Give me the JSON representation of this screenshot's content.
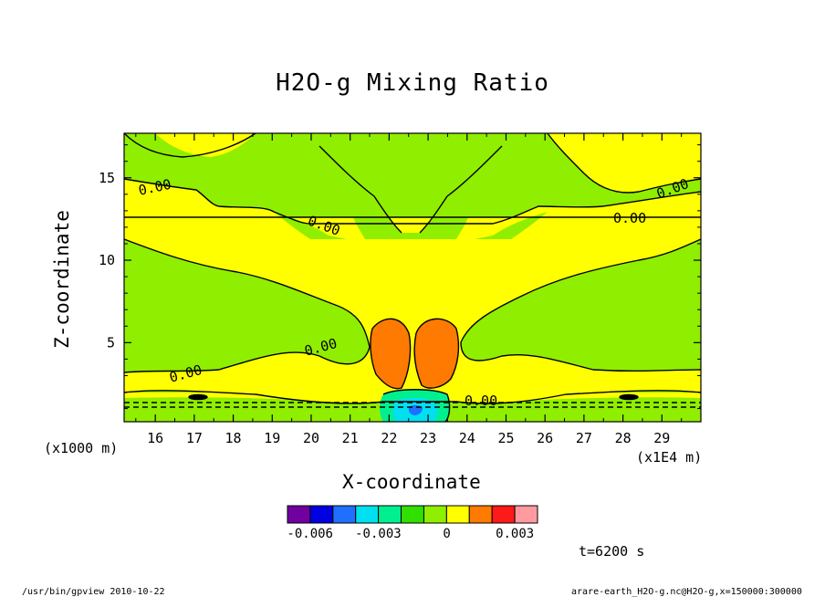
{
  "title": "H2O-g Mixing Ratio",
  "chart_data": {
    "type": "heatmap",
    "title": "H2O-g Mixing Ratio",
    "xlabel": "X-coordinate",
    "ylabel": "Z-coordinate",
    "x_unit": "(x1E4 m)",
    "y_unit": "(x1000 m)",
    "xlim": [
      15.2,
      30.0
    ],
    "ylim": [
      0.2,
      17.7
    ],
    "x_ticks": [
      "16",
      "17",
      "18",
      "19",
      "20",
      "21",
      "22",
      "23",
      "24",
      "25",
      "26",
      "27",
      "28",
      "29"
    ],
    "y_ticks": [
      "5",
      "10",
      "15"
    ],
    "contour_labels": [
      "0.00",
      "0.00",
      "0.00",
      "0.00",
      "0.00",
      "0.00",
      "0.00"
    ],
    "colorbar": {
      "levels": [
        -0.006,
        -0.005,
        -0.004,
        -0.003,
        -0.002,
        -0.001,
        0,
        0.001,
        0.002,
        0.003
      ],
      "tick_labels": [
        "-0.006",
        "-0.003",
        "0",
        "0.003"
      ],
      "colors": [
        "#7000a0",
        "#0000e0",
        "#1f70ff",
        "#00e0f0",
        "#00f090",
        "#30e000",
        "#90ee00",
        "#ffff00",
        "#ff7a00",
        "#ff1a1a",
        "#ff9aa0"
      ]
    }
  },
  "time_label": "t=6200 s",
  "footer_left": "/usr/bin/gpview  2010-10-22",
  "footer_right": "arare-earth_H2O-g.nc@H2O-g,x=150000:300000"
}
